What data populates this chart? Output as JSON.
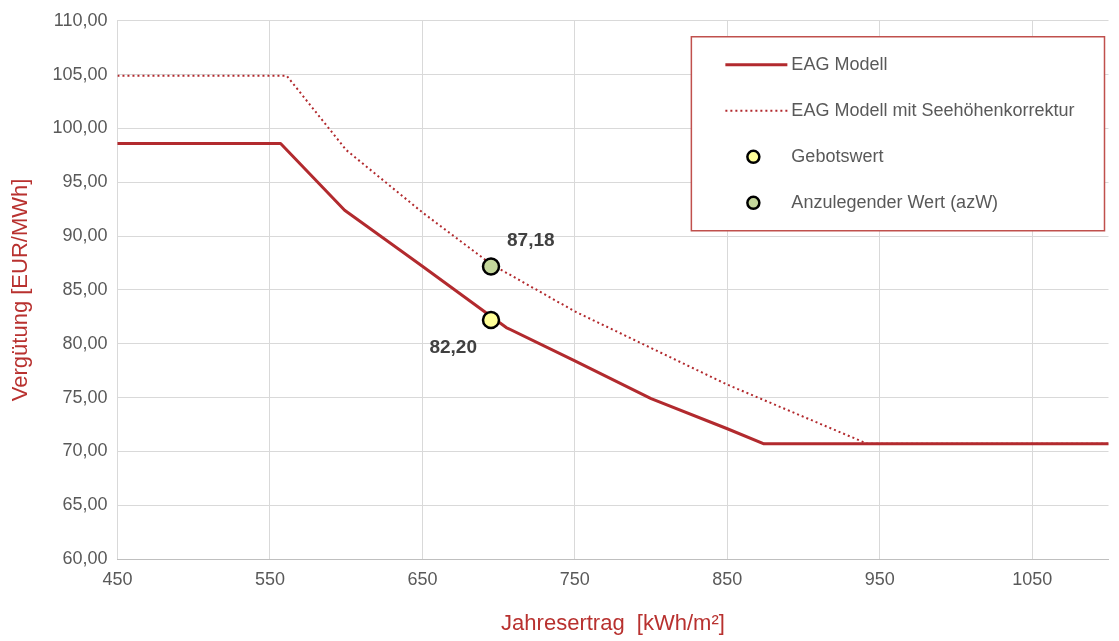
{
  "chart_data": {
    "type": "line",
    "xlabel": "Jahresertrag  [kWh/m²]",
    "ylabel": "Vergütung [EUR/MWh]",
    "xlim": [
      450,
      1100
    ],
    "xticks": [
      450,
      550,
      650,
      750,
      850,
      950,
      1050
    ],
    "ylim": [
      60,
      110
    ],
    "yticks": [
      {
        "value": 60,
        "label": "60,00"
      },
      {
        "value": 65,
        "label": "65,00"
      },
      {
        "value": 70,
        "label": "70,00"
      },
      {
        "value": 75,
        "label": "75,00"
      },
      {
        "value": 80,
        "label": "80,00"
      },
      {
        "value": 85,
        "label": "85,00"
      },
      {
        "value": 90,
        "label": "90,00"
      },
      {
        "value": 95,
        "label": "95,00"
      },
      {
        "value": 100,
        "label": "100,00"
      },
      {
        "value": 105,
        "label": "105,00"
      },
      {
        "value": 110,
        "label": "110,00"
      }
    ],
    "grid": true,
    "legend": "top right",
    "series": [
      {
        "name": "EAG Modell",
        "color": "#b22a2e",
        "line_style": "solid",
        "marker": "none",
        "x": [
          450,
          557,
          599,
          650,
          705,
          750,
          800,
          850,
          874,
          1100
        ],
        "values": [
          98.6,
          98.6,
          92.4,
          87.2,
          81.5,
          78.4,
          74.9,
          72.1,
          70.7,
          70.7
        ]
      },
      {
        "name": "EAG Modell mit Seehöhenkorrektur",
        "color": "#b22a2e",
        "line_style": "dotted",
        "marker": "none",
        "x": [
          450,
          561,
          600,
          650,
          695,
          750,
          850,
          942,
          1100
        ],
        "values": [
          104.9,
          104.9,
          98.0,
          92.2,
          87.4,
          83.0,
          76.2,
          70.7,
          70.7
        ]
      },
      {
        "name": "Gebotswert",
        "type": "scatter",
        "color": "#ffff99",
        "marker": "circle",
        "x": [
          695
        ],
        "values": [
          82.2
        ],
        "value_labels": [
          "82,20"
        ]
      },
      {
        "name": "Anzulegender Wert (azW)",
        "type": "scatter",
        "color": "#c4d79b",
        "marker": "circle",
        "x": [
          695
        ],
        "values": [
          87.18
        ],
        "value_labels": [
          "87,18"
        ]
      }
    ]
  }
}
